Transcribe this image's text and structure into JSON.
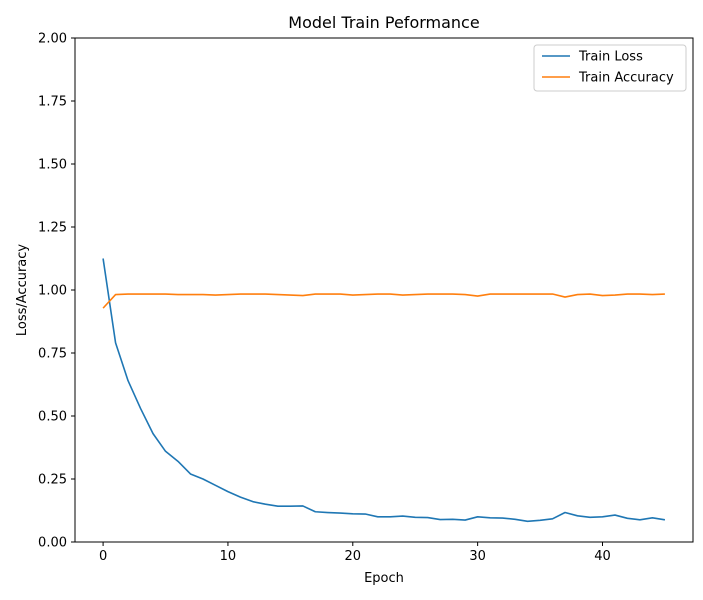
{
  "chart_data": {
    "type": "line",
    "title": "Model Train Peformance",
    "xlabel": "Epoch",
    "ylabel": "Loss/Accuracy",
    "xlim": [
      -2.25,
      47.25
    ],
    "ylim": [
      0,
      2.0
    ],
    "x_ticks": [
      0,
      10,
      20,
      30,
      40
    ],
    "x_tick_labels": [
      "0",
      "10",
      "20",
      "30",
      "40"
    ],
    "y_ticks": [
      0,
      0.25,
      0.5,
      0.75,
      1.0,
      1.25,
      1.5,
      1.75,
      2.0
    ],
    "y_tick_labels": [
      "0.00",
      "0.25",
      "0.50",
      "0.75",
      "1.00",
      "1.25",
      "1.50",
      "1.75",
      "2.00"
    ],
    "grid": false,
    "legend_position": "top-right",
    "x": [
      0,
      1,
      2,
      3,
      4,
      5,
      6,
      7,
      8,
      9,
      10,
      11,
      12,
      13,
      14,
      15,
      16,
      17,
      18,
      19,
      20,
      21,
      22,
      23,
      24,
      25,
      26,
      27,
      28,
      29,
      30,
      31,
      32,
      33,
      34,
      35,
      36,
      37,
      38,
      39,
      40,
      41,
      42,
      43,
      44,
      45
    ],
    "series": [
      {
        "name": "Train Loss",
        "color": "#1f77b4",
        "values": [
          1.125,
          0.79,
          0.64,
          0.53,
          0.43,
          0.36,
          0.32,
          0.27,
          0.25,
          0.225,
          0.2,
          0.178,
          0.16,
          0.15,
          0.142,
          0.142,
          0.143,
          0.12,
          0.117,
          0.115,
          0.112,
          0.111,
          0.1,
          0.1,
          0.103,
          0.098,
          0.097,
          0.089,
          0.09,
          0.087,
          0.1,
          0.096,
          0.095,
          0.09,
          0.082,
          0.086,
          0.092,
          0.117,
          0.104,
          0.098,
          0.1,
          0.107,
          0.094,
          0.088,
          0.096,
          0.088
        ]
      },
      {
        "name": "Train Accuracy",
        "color": "#ff7f0e",
        "values": [
          0.928,
          0.982,
          0.984,
          0.984,
          0.984,
          0.984,
          0.982,
          0.982,
          0.982,
          0.98,
          0.982,
          0.984,
          0.984,
          0.984,
          0.982,
          0.98,
          0.978,
          0.984,
          0.984,
          0.984,
          0.98,
          0.982,
          0.984,
          0.984,
          0.98,
          0.982,
          0.984,
          0.984,
          0.984,
          0.982,
          0.976,
          0.984,
          0.984,
          0.984,
          0.984,
          0.984,
          0.984,
          0.972,
          0.982,
          0.984,
          0.978,
          0.98,
          0.984,
          0.984,
          0.982,
          0.984
        ]
      }
    ]
  }
}
